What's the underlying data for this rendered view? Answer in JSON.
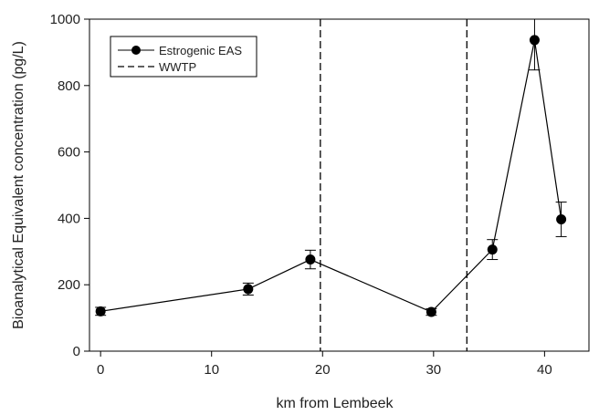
{
  "chart_data": {
    "type": "line",
    "xlabel": "km from Lembeek",
    "ylabel": "Bioanalytical Equivalent concentration (pg/L)",
    "xlim": [
      -1,
      44
    ],
    "ylim": [
      0,
      1000
    ],
    "xticks": [
      0,
      10,
      20,
      30,
      40
    ],
    "yticks": [
      0,
      200,
      400,
      600,
      800,
      1000
    ],
    "grid": false,
    "legend_position": "top-left",
    "series": [
      {
        "name": "Estrogenic EAS",
        "marker": "circle",
        "color": "#000000",
        "x": [
          0,
          13.3,
          18.9,
          29.8,
          35.3,
          39.1,
          41.5
        ],
        "y": [
          120,
          187,
          276,
          118,
          306,
          937,
          397
        ],
        "err": [
          12,
          18,
          28,
          10,
          30,
          90,
          52
        ]
      }
    ],
    "vlines": [
      {
        "name": "WWTP",
        "style": "dashed",
        "x": [
          19.8,
          33.0
        ]
      }
    ]
  }
}
